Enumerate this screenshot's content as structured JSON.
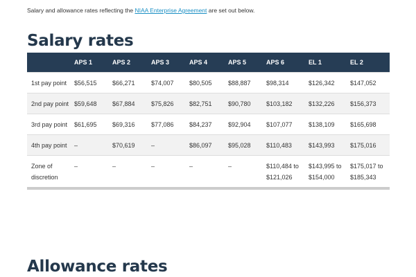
{
  "intro": {
    "before": "Salary and allowance rates reflecting the ",
    "link": "NIAA Enterprise Agreement",
    "after": " are set out below."
  },
  "salary_heading": "Salary rates",
  "table": {
    "headers": [
      "",
      "APS 1",
      "APS 2",
      "APS 3",
      "APS 4",
      "APS 5",
      "APS 6",
      "EL 1",
      "EL 2"
    ],
    "rows": [
      [
        "1st pay point",
        "$56,515",
        "$66,271",
        "$74,007",
        "$80,505",
        "$88,887",
        "$98,314",
        "$126,342",
        "$147,052"
      ],
      [
        "2nd pay point",
        "$59,648",
        "$67,884",
        "$75,826",
        "$82,751",
        "$90,780",
        "$103,182",
        "$132,226",
        "$156,373"
      ],
      [
        "3rd pay point",
        "$61,695",
        "$69,316",
        "$77,086",
        "$84,237",
        "$92,904",
        "$107,077",
        "$138,109",
        "$165,698"
      ],
      [
        "4th pay point",
        "–",
        "$70,619",
        "–",
        "$86,097",
        "$95,028",
        "$110,483",
        "$143,993",
        "$175,016"
      ],
      [
        "Zone of discretion",
        "–",
        "–",
        "–",
        "–",
        "–",
        "$110,484 to $121,026",
        "$143,995 to $154,000",
        "$175,017 to $185,343"
      ]
    ]
  },
  "allowance_heading": "Allowance rates"
}
